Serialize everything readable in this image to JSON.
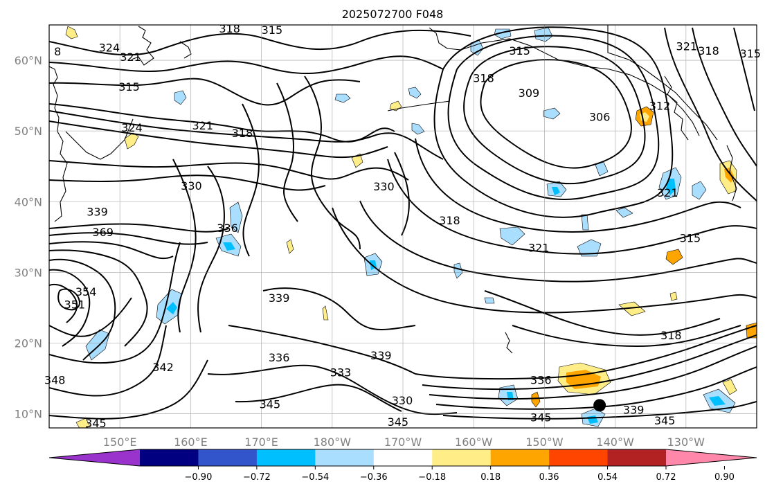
{
  "title": "2025072700 F048",
  "map": {
    "lat_ticks": [
      {
        "label": "10°N",
        "lat": 10
      },
      {
        "label": "20°N",
        "lat": 20
      },
      {
        "label": "30°N",
        "lat": 30
      },
      {
        "label": "40°N",
        "lat": 40
      },
      {
        "label": "50°N",
        "lat": 50
      },
      {
        "label": "60°N",
        "lat": 60
      }
    ],
    "lon_ticks": [
      {
        "label": "150°E",
        "lon": 150
      },
      {
        "label": "160°E",
        "lon": 160
      },
      {
        "label": "170°E",
        "lon": 170
      },
      {
        "label": "180°W",
        "lon": 180
      },
      {
        "label": "170°W",
        "lon": 190
      },
      {
        "label": "160°W",
        "lon": 200
      },
      {
        "label": "150°W",
        "lon": 210
      },
      {
        "label": "140°W",
        "lon": 220
      },
      {
        "label": "130°W",
        "lon": 230
      }
    ],
    "lon_range": [
      140,
      240
    ],
    "lat_range": [
      8,
      65
    ],
    "grid": true,
    "contour_labels": [
      {
        "text": "318",
        "lon": 165.5,
        "lat": 64.5
      },
      {
        "text": "315",
        "lon": 171.5,
        "lat": 64.3
      },
      {
        "text": "324",
        "lon": 148.5,
        "lat": 61.8
      },
      {
        "text": "321",
        "lon": 151.5,
        "lat": 60.5
      },
      {
        "text": "315",
        "lon": 151.3,
        "lat": 56.3
      },
      {
        "text": "8",
        "lon": 141.2,
        "lat": 61.3
      },
      {
        "text": "321",
        "lon": 161.7,
        "lat": 50.8
      },
      {
        "text": "324",
        "lon": 151.7,
        "lat": 50.5
      },
      {
        "text": "318",
        "lon": 167.3,
        "lat": 49.7
      },
      {
        "text": "330",
        "lon": 160.1,
        "lat": 42.3
      },
      {
        "text": "330",
        "lon": 187.3,
        "lat": 42.2
      },
      {
        "text": "339",
        "lon": 146.8,
        "lat": 38.6
      },
      {
        "text": "369",
        "lon": 147.6,
        "lat": 35.7
      },
      {
        "text": "336",
        "lon": 165.2,
        "lat": 36.3
      },
      {
        "text": "354",
        "lon": 145.2,
        "lat": 27.3
      },
      {
        "text": "351",
        "lon": 143.6,
        "lat": 25.5
      },
      {
        "text": "339",
        "lon": 172.5,
        "lat": 26.4
      },
      {
        "text": "336",
        "lon": 172.5,
        "lat": 18.0
      },
      {
        "text": "339",
        "lon": 186.9,
        "lat": 18.3
      },
      {
        "text": "333",
        "lon": 181.2,
        "lat": 15.9
      },
      {
        "text": "342",
        "lon": 156.1,
        "lat": 16.6
      },
      {
        "text": "345",
        "lon": 171.2,
        "lat": 11.4
      },
      {
        "text": "330",
        "lon": 189.9,
        "lat": 11.9
      },
      {
        "text": "345",
        "lon": 189.3,
        "lat": 8.9
      },
      {
        "text": "348",
        "lon": 140.8,
        "lat": 14.8
      },
      {
        "text": "345",
        "lon": 146.6,
        "lat": 8.7
      },
      {
        "text": "315",
        "lon": 206.5,
        "lat": 61.4
      },
      {
        "text": "318",
        "lon": 201.4,
        "lat": 57.5
      },
      {
        "text": "309",
        "lon": 207.8,
        "lat": 55.4
      },
      {
        "text": "306",
        "lon": 217.8,
        "lat": 52.0
      },
      {
        "text": "312",
        "lon": 226.3,
        "lat": 53.6
      },
      {
        "text": "318",
        "lon": 196.6,
        "lat": 37.4
      },
      {
        "text": "321",
        "lon": 209.2,
        "lat": 33.5
      },
      {
        "text": "321",
        "lon": 227.4,
        "lat": 41.3
      },
      {
        "text": "315",
        "lon": 230.6,
        "lat": 34.9
      },
      {
        "text": "321",
        "lon": 230.1,
        "lat": 62.0
      },
      {
        "text": "318",
        "lon": 233.2,
        "lat": 61.4
      },
      {
        "text": "315",
        "lon": 239.1,
        "lat": 61.0
      },
      {
        "text": "318",
        "lon": 227.9,
        "lat": 21.1
      },
      {
        "text": "336",
        "lon": 209.5,
        "lat": 14.8
      },
      {
        "text": "339",
        "lon": 222.6,
        "lat": 10.6
      },
      {
        "text": "345",
        "lon": 209.5,
        "lat": 9.5
      },
      {
        "text": "345",
        "lon": 227.0,
        "lat": 9.1
      }
    ],
    "marker": {
      "lon": 217.8,
      "lat": 11.2,
      "color": "#000000"
    }
  },
  "colorbar": {
    "colors": [
      "#9933cc",
      "#000080",
      "#3355cc",
      "#00bfff",
      "#aadeff",
      "#ffffff",
      "#ffee88",
      "#ffa500",
      "#ff4500",
      "#b22222",
      "#ff88aa"
    ],
    "tick_labels": [
      "−0.90",
      "−0.72",
      "−0.54",
      "−0.36",
      "−0.18",
      "0.18",
      "0.36",
      "0.54",
      "0.72",
      "0.90"
    ]
  }
}
